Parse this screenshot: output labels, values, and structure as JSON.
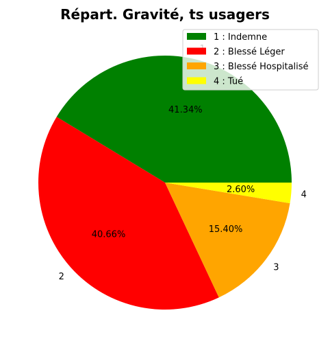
{
  "chart_data": {
    "type": "pie",
    "title": "Répart. Gravité, ts usagers",
    "categories": [
      "1",
      "2",
      "3",
      "4"
    ],
    "values": [
      41.34,
      40.66,
      15.4,
      2.6
    ],
    "pct_labels": [
      "41.34%",
      "40.66%",
      "15.40%",
      "2.60%"
    ],
    "legend": [
      "1 : Indemne",
      "2 : Blessé Léger",
      "3 : Blessé Hospitalisé",
      "4 : Tué"
    ],
    "colors": [
      "#008000",
      "#ff0000",
      "#ffa500",
      "#ffff00"
    ],
    "start_angle_deg": 0,
    "direction": "counterclockwise",
    "legend_position": "top-right"
  }
}
